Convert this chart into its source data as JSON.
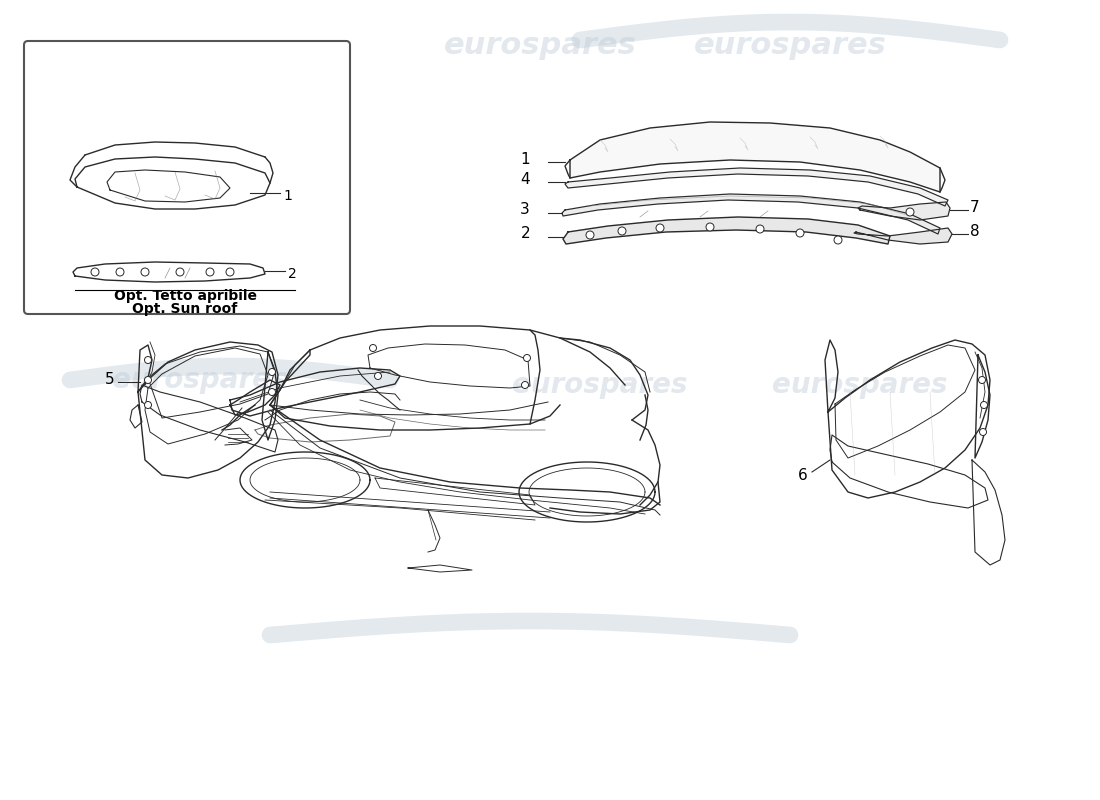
{
  "background_color": "#ffffff",
  "watermark_text": "eurospares",
  "watermark_color": "#c0cdd8",
  "watermark_alpha": 0.45,
  "line_color": "#2a2a2a",
  "line_width": 1.0,
  "label_fontsize": 11,
  "box_text_line1": "Opt. Tetto apribile",
  "box_text_line2": "Opt. Sun roof",
  "swoosh_color": "#c8d4dc",
  "swoosh_alpha": 0.5
}
